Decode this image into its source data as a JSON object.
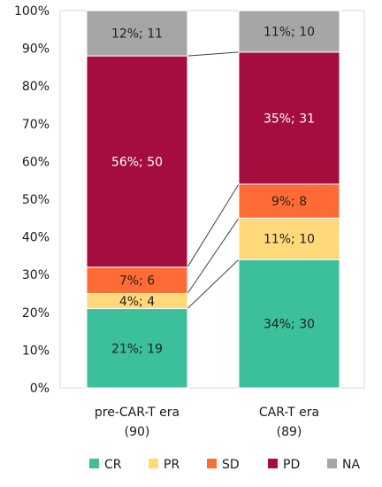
{
  "chart_data": {
    "type": "bar",
    "stacked": true,
    "percent": true,
    "title": "",
    "xlabel": "",
    "ylabel": "",
    "ylim": [
      0,
      100
    ],
    "y_ticks": [
      "0%",
      "10%",
      "20%",
      "30%",
      "40%",
      "50%",
      "60%",
      "70%",
      "80%",
      "90%",
      "100%"
    ],
    "categories": [
      "pre-CAR-T era",
      "CAR-T era"
    ],
    "category_counts": [
      "(90)",
      "(89)"
    ],
    "series": [
      {
        "name": "CR",
        "color": "#3cbf9b",
        "values": [
          21,
          34
        ],
        "counts": [
          19,
          30
        ],
        "labels": [
          "21%; 19",
          "34%; 30"
        ],
        "label_color": "#222222"
      },
      {
        "name": "PR",
        "color": "#ffd97a",
        "values": [
          4,
          11
        ],
        "counts": [
          4,
          10
        ],
        "labels": [
          "4%; 4",
          "11%; 10"
        ],
        "label_color": "#222222"
      },
      {
        "name": "SD",
        "color": "#ff6b35",
        "values": [
          7,
          9
        ],
        "counts": [
          6,
          8
        ],
        "labels": [
          "7%; 6",
          "9%; 8"
        ],
        "label_color": "#222222"
      },
      {
        "name": "PD",
        "color": "#a50d3f",
        "values": [
          56,
          35
        ],
        "counts": [
          50,
          31
        ],
        "labels": [
          "56%; 50",
          "35%; 31"
        ],
        "label_color": "#ffffff"
      },
      {
        "name": "NA",
        "color": "#a6a6a6",
        "values": [
          12,
          11
        ],
        "counts": [
          11,
          10
        ],
        "labels": [
          "12%; 11",
          "11%; 10"
        ],
        "label_color": "#222222"
      }
    ],
    "series_connectors": true,
    "legend_position": "bottom",
    "grid": false
  }
}
